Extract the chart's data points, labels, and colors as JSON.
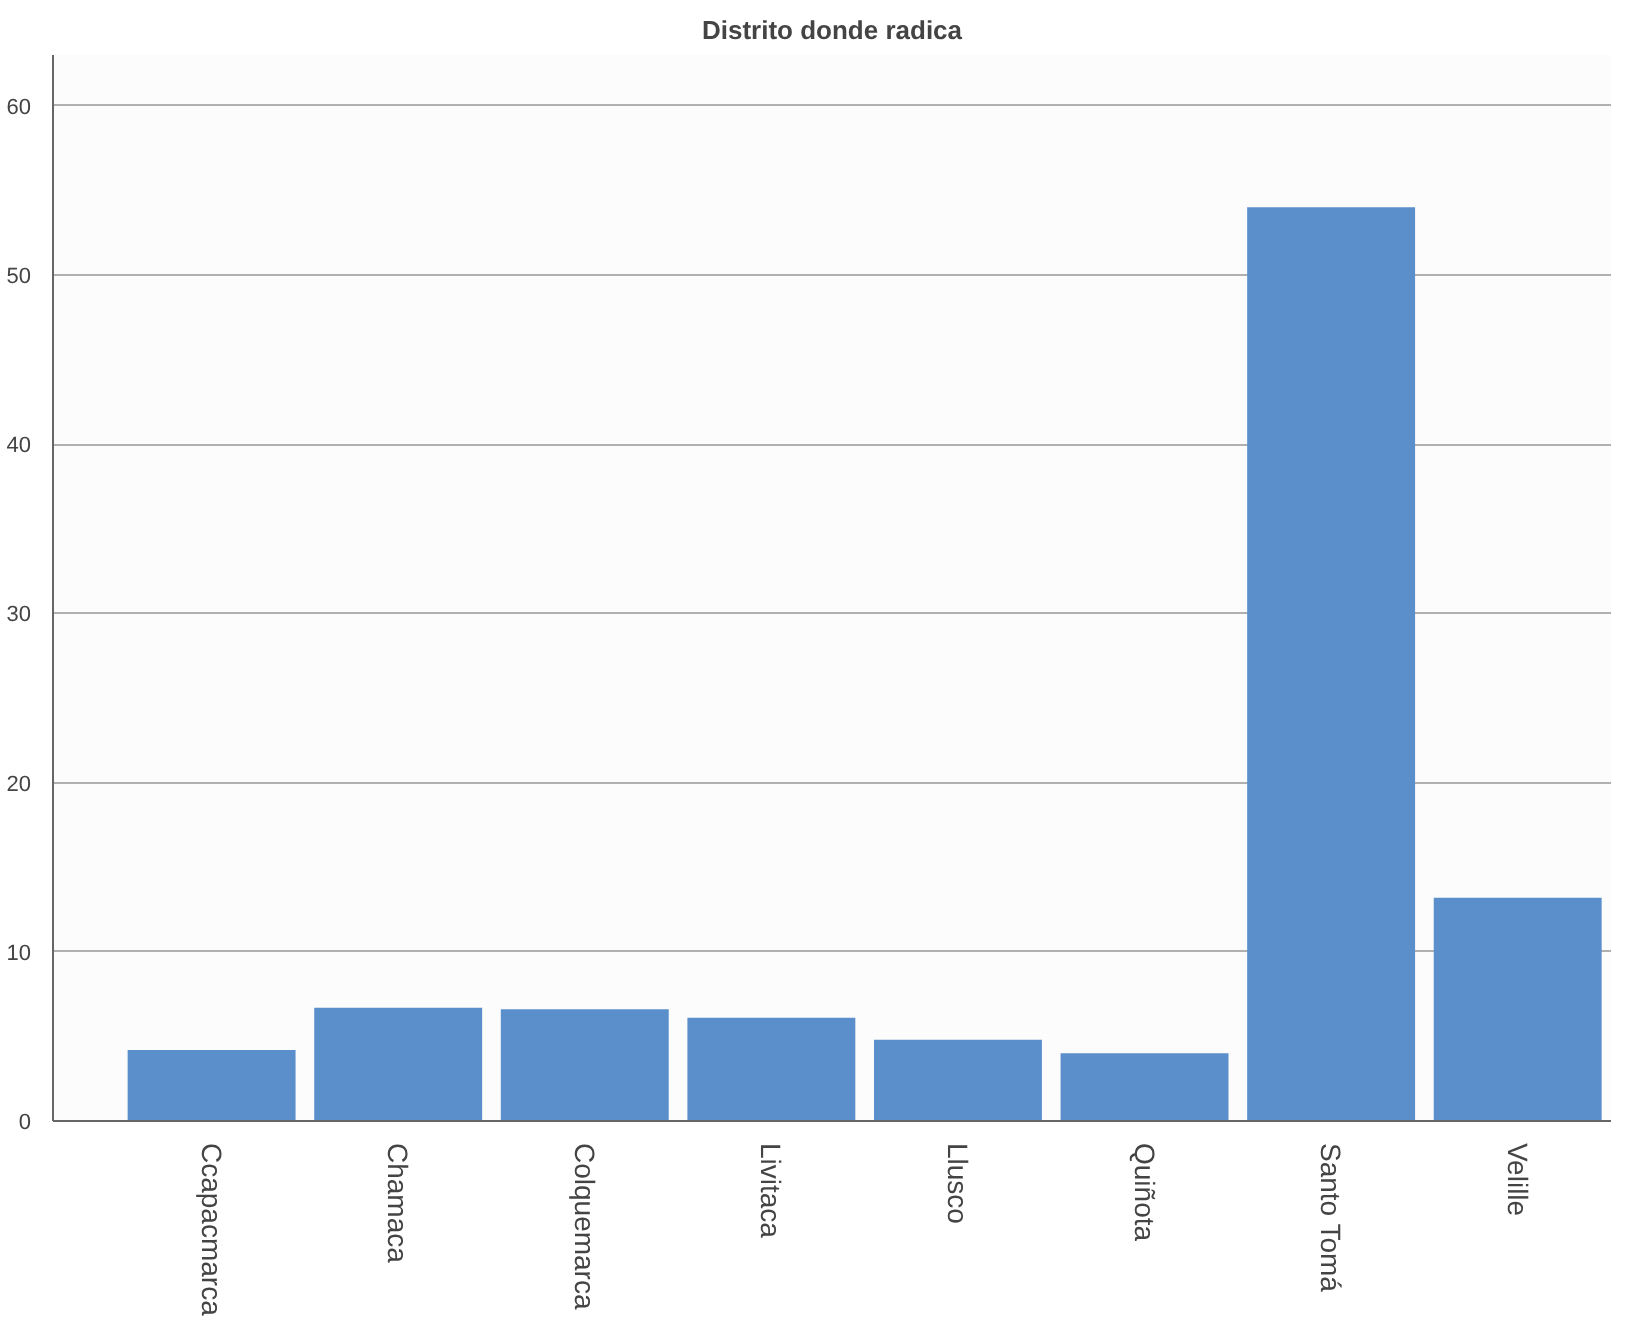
{
  "chart_data": {
    "type": "bar",
    "title": "Distrito donde radica",
    "categories": [
      "Ccapacmarca",
      "Chamaca",
      "Colquemarca",
      "Livitaca",
      "Llusco",
      "Quiñota",
      "Santo Tomá",
      "Velille"
    ],
    "values": [
      4.2,
      6.7,
      6.6,
      6.1,
      4.8,
      4.0,
      54.0,
      13.2
    ],
    "color": "#5b8fcb",
    "ylim": [
      0,
      63
    ],
    "yticks": [
      0,
      10,
      20,
      30,
      40,
      50,
      60
    ],
    "grid": "y"
  }
}
